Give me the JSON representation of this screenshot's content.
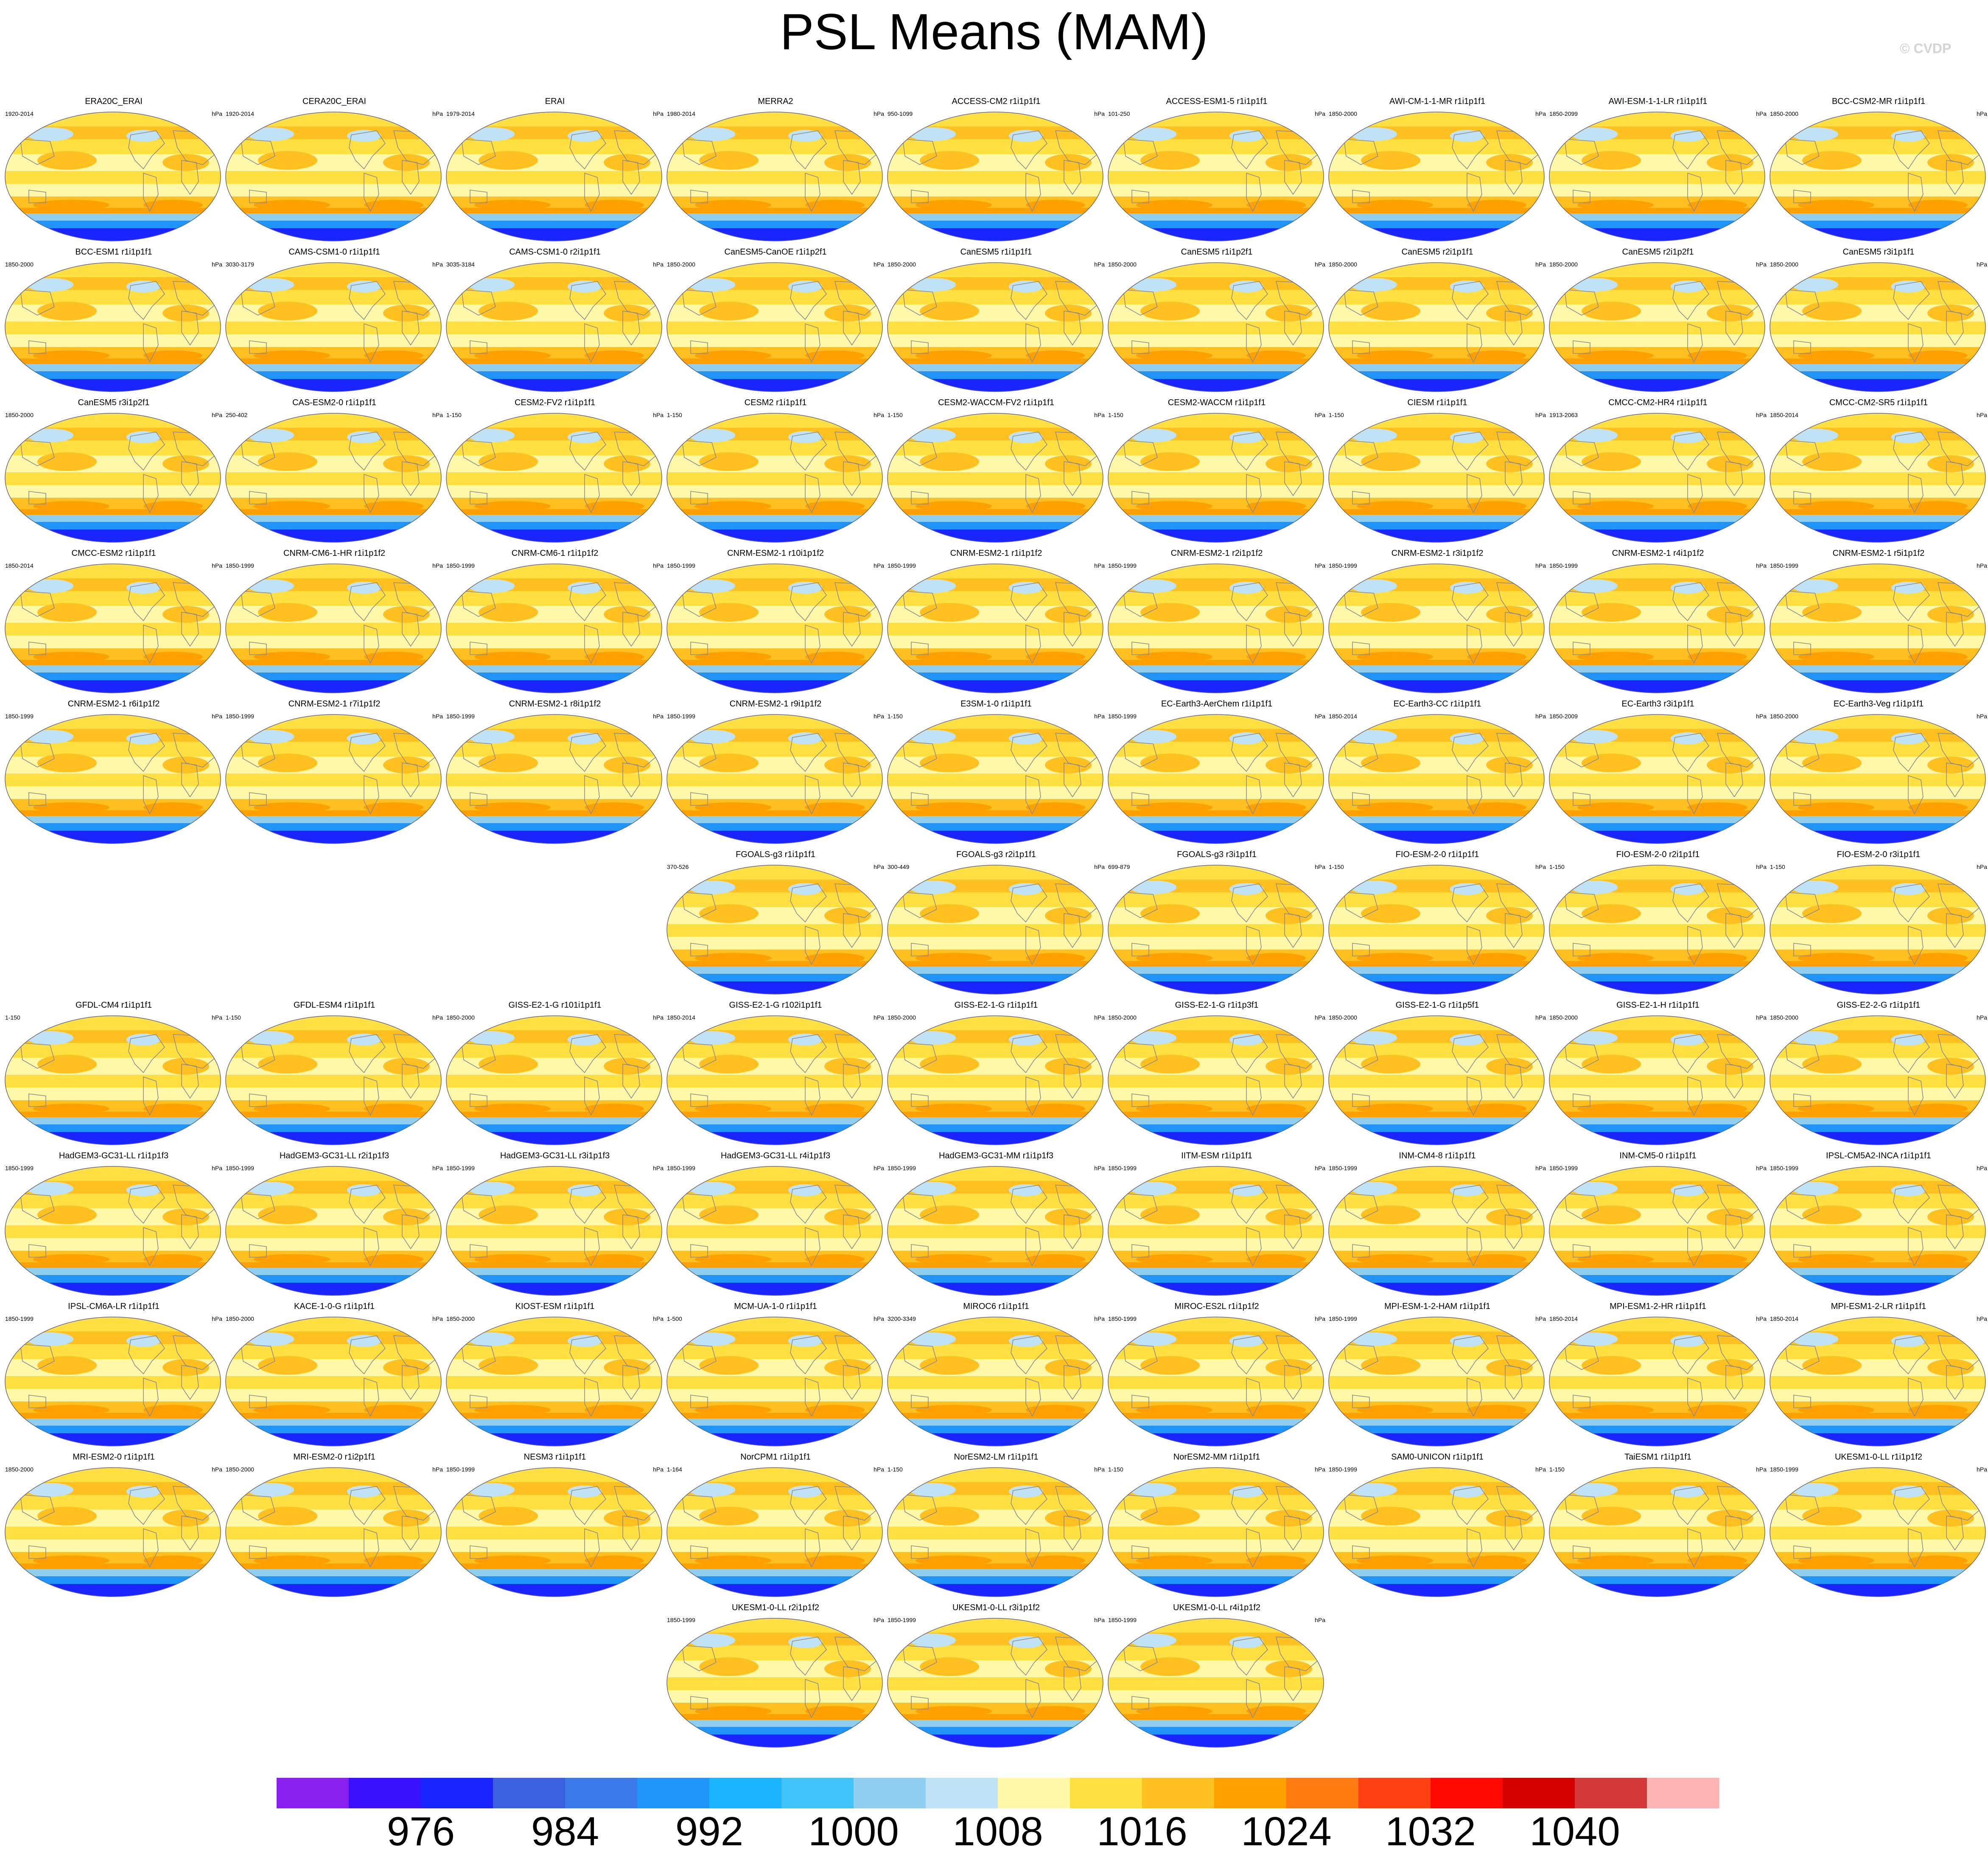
{
  "page": {
    "title": "PSL Means (MAM)",
    "watermark": "© CVDP"
  },
  "chart_data": {
    "type": "heatmap",
    "title": "PSL Means (MAM)",
    "description_kind": "panel grid of global sea level pressure maps",
    "units": "hPa",
    "colorbar": {
      "ticks": [
        976,
        984,
        992,
        1000,
        1008,
        1016,
        1024,
        1032,
        1040
      ],
      "colors": [
        "#8a20f0",
        "#3a10ff",
        "#1a24ff",
        "#3a60e0",
        "#3a7ae8",
        "#2094f8",
        "#1ab4ff",
        "#40c4f8",
        "#90cef0",
        "#c0e2f6",
        "#fff8a8",
        "#ffe040",
        "#ffc020",
        "#ffa000",
        "#ff7a10",
        "#ff4010",
        "#ff0800",
        "#d40000",
        "#d43838",
        "#ffb4b4"
      ]
    },
    "panels": [
      {
        "name": "ERA20C_ERAI",
        "years": "1920-2014",
        "unit": "hPa"
      },
      {
        "name": "CERA20C_ERAI",
        "years": "1920-2014",
        "unit": "hPa"
      },
      {
        "name": "ERAI",
        "years": "1979-2014",
        "unit": "hPa"
      },
      {
        "name": "MERRA2",
        "years": "1980-2014",
        "unit": "hPa"
      },
      {
        "name": "ACCESS-CM2 r1i1p1f1",
        "years": "950-1099",
        "unit": "hPa"
      },
      {
        "name": "ACCESS-ESM1-5 r1i1p1f1",
        "years": "101-250",
        "unit": "hPa"
      },
      {
        "name": "AWI-CM-1-1-MR r1i1p1f1",
        "years": "1850-2000",
        "unit": "hPa"
      },
      {
        "name": "AWI-ESM-1-1-LR r1i1p1f1",
        "years": "1850-2099",
        "unit": "hPa"
      },
      {
        "name": "BCC-CSM2-MR r1i1p1f1",
        "years": "1850-2000",
        "unit": "hPa"
      },
      {
        "name": "BCC-ESM1 r1i1p1f1",
        "years": "1850-2000",
        "unit": "hPa"
      },
      {
        "name": "CAMS-CSM1-0 r1i1p1f1",
        "years": "3030-3179",
        "unit": "hPa"
      },
      {
        "name": "CAMS-CSM1-0 r2i1p1f1",
        "years": "3035-3184",
        "unit": "hPa"
      },
      {
        "name": "CanESM5-CanOE r1i1p2f1",
        "years": "1850-2000",
        "unit": "hPa"
      },
      {
        "name": "CanESM5 r1i1p1f1",
        "years": "1850-2000",
        "unit": "hPa"
      },
      {
        "name": "CanESM5 r1i1p2f1",
        "years": "1850-2000",
        "unit": "hPa"
      },
      {
        "name": "CanESM5 r2i1p1f1",
        "years": "1850-2000",
        "unit": "hPa"
      },
      {
        "name": "CanESM5 r2i1p2f1",
        "years": "1850-2000",
        "unit": "hPa"
      },
      {
        "name": "CanESM5 r3i1p1f1",
        "years": "1850-2000",
        "unit": "hPa"
      },
      {
        "name": "CanESM5 r3i1p2f1",
        "years": "1850-2000",
        "unit": "hPa"
      },
      {
        "name": "CAS-ESM2-0 r1i1p1f1",
        "years": "250-402",
        "unit": "hPa"
      },
      {
        "name": "CESM2-FV2 r1i1p1f1",
        "years": "1-150",
        "unit": "hPa"
      },
      {
        "name": "CESM2 r1i1p1f1",
        "years": "1-150",
        "unit": "hPa"
      },
      {
        "name": "CESM2-WACCM-FV2 r1i1p1f1",
        "years": "1-150",
        "unit": "hPa"
      },
      {
        "name": "CESM2-WACCM r1i1p1f1",
        "years": "1-150",
        "unit": "hPa"
      },
      {
        "name": "CIESM r1i1p1f1",
        "years": "1-150",
        "unit": "hPa"
      },
      {
        "name": "CMCC-CM2-HR4 r1i1p1f1",
        "years": "1913-2063",
        "unit": "hPa"
      },
      {
        "name": "CMCC-CM2-SR5 r1i1p1f1",
        "years": "1850-2014",
        "unit": "hPa"
      },
      {
        "name": "CMCC-ESM2 r1i1p1f1",
        "years": "1850-2014",
        "unit": "hPa"
      },
      {
        "name": "CNRM-CM6-1-HR r1i1p1f2",
        "years": "1850-1999",
        "unit": "hPa"
      },
      {
        "name": "CNRM-CM6-1 r1i1p1f2",
        "years": "1850-1999",
        "unit": "hPa"
      },
      {
        "name": "CNRM-ESM2-1 r10i1p1f2",
        "years": "1850-1999",
        "unit": "hPa"
      },
      {
        "name": "CNRM-ESM2-1 r1i1p1f2",
        "years": "1850-1999",
        "unit": "hPa"
      },
      {
        "name": "CNRM-ESM2-1 r2i1p1f2",
        "years": "1850-1999",
        "unit": "hPa"
      },
      {
        "name": "CNRM-ESM2-1 r3i1p1f2",
        "years": "1850-1999",
        "unit": "hPa"
      },
      {
        "name": "CNRM-ESM2-1 r4i1p1f2",
        "years": "1850-1999",
        "unit": "hPa"
      },
      {
        "name": "CNRM-ESM2-1 r5i1p1f2",
        "years": "1850-1999",
        "unit": "hPa"
      },
      {
        "name": "CNRM-ESM2-1 r6i1p1f2",
        "years": "1850-1999",
        "unit": "hPa"
      },
      {
        "name": "CNRM-ESM2-1 r7i1p1f2",
        "years": "1850-1999",
        "unit": "hPa"
      },
      {
        "name": "CNRM-ESM2-1 r8i1p1f2",
        "years": "1850-1999",
        "unit": "hPa"
      },
      {
        "name": "CNRM-ESM2-1 r9i1p1f2",
        "years": "1850-1999",
        "unit": "hPa"
      },
      {
        "name": "E3SM-1-0 r1i1p1f1",
        "years": "1-150",
        "unit": "hPa"
      },
      {
        "name": "EC-Earth3-AerChem r1i1p1f1",
        "years": "1850-1999",
        "unit": "hPa"
      },
      {
        "name": "EC-Earth3-CC r1i1p1f1",
        "years": "1850-2014",
        "unit": "hPa"
      },
      {
        "name": "EC-Earth3 r3i1p1f1",
        "years": "1850-2009",
        "unit": "hPa"
      },
      {
        "name": "EC-Earth3-Veg r1i1p1f1",
        "years": "1850-2000",
        "unit": "hPa"
      },
      {
        "name": "FGOALS-g3 r1i1p1f1",
        "years": "370-526",
        "unit": "hPa"
      },
      {
        "name": "FGOALS-g3 r2i1p1f1",
        "years": "300-449",
        "unit": "hPa"
      },
      {
        "name": "FGOALS-g3 r3i1p1f1",
        "years": "699-879",
        "unit": "hPa"
      },
      {
        "name": "FIO-ESM-2-0 r1i1p1f1",
        "years": "1-150",
        "unit": "hPa"
      },
      {
        "name": "FIO-ESM-2-0 r2i1p1f1",
        "years": "1-150",
        "unit": "hPa"
      },
      {
        "name": "FIO-ESM-2-0 r3i1p1f1",
        "years": "1-150",
        "unit": "hPa"
      },
      {
        "name": "GFDL-CM4 r1i1p1f1",
        "years": "1-150",
        "unit": "hPa"
      },
      {
        "name": "GFDL-ESM4 r1i1p1f1",
        "years": "1-150",
        "unit": "hPa"
      },
      {
        "name": "GISS-E2-1-G r101i1p1f1",
        "years": "1850-2000",
        "unit": "hPa"
      },
      {
        "name": "GISS-E2-1-G r102i1p1f1",
        "years": "1850-2014",
        "unit": "hPa"
      },
      {
        "name": "GISS-E2-1-G r1i1p1f1",
        "years": "1850-2000",
        "unit": "hPa"
      },
      {
        "name": "GISS-E2-1-G r1i1p3f1",
        "years": "1850-2000",
        "unit": "hPa"
      },
      {
        "name": "GISS-E2-1-G r1i1p5f1",
        "years": "1850-2000",
        "unit": "hPa"
      },
      {
        "name": "GISS-E2-1-H r1i1p1f1",
        "years": "1850-2000",
        "unit": "hPa"
      },
      {
        "name": "GISS-E2-2-G r1i1p1f1",
        "years": "1850-2000",
        "unit": "hPa"
      },
      {
        "name": "HadGEM3-GC31-LL r1i1p1f3",
        "years": "1850-1999",
        "unit": "hPa"
      },
      {
        "name": "HadGEM3-GC31-LL r2i1p1f3",
        "years": "1850-1999",
        "unit": "hPa"
      },
      {
        "name": "HadGEM3-GC31-LL r3i1p1f3",
        "years": "1850-1999",
        "unit": "hPa"
      },
      {
        "name": "HadGEM3-GC31-LL r4i1p1f3",
        "years": "1850-1999",
        "unit": "hPa"
      },
      {
        "name": "HadGEM3-GC31-MM r1i1p1f3",
        "years": "1850-1999",
        "unit": "hPa"
      },
      {
        "name": "IITM-ESM r1i1p1f1",
        "years": "1850-1999",
        "unit": "hPa"
      },
      {
        "name": "INM-CM4-8 r1i1p1f1",
        "years": "1850-1999",
        "unit": "hPa"
      },
      {
        "name": "INM-CM5-0 r1i1p1f1",
        "years": "1850-1999",
        "unit": "hPa"
      },
      {
        "name": "IPSL-CM5A2-INCA r1i1p1f1",
        "years": "1850-1999",
        "unit": "hPa"
      },
      {
        "name": "IPSL-CM6A-LR r1i1p1f1",
        "years": "1850-1999",
        "unit": "hPa"
      },
      {
        "name": "KACE-1-0-G r1i1p1f1",
        "years": "1850-2000",
        "unit": "hPa"
      },
      {
        "name": "KIOST-ESM r1i1p1f1",
        "years": "1850-2000",
        "unit": "hPa"
      },
      {
        "name": "MCM-UA-1-0 r1i1p1f1",
        "years": "1-500",
        "unit": "hPa"
      },
      {
        "name": "MIROC6 r1i1p1f1",
        "years": "3200-3349",
        "unit": "hPa"
      },
      {
        "name": "MIROC-ES2L r1i1p1f2",
        "years": "1850-1999",
        "unit": "hPa"
      },
      {
        "name": "MPI-ESM-1-2-HAM r1i1p1f1",
        "years": "1850-1999",
        "unit": "hPa"
      },
      {
        "name": "MPI-ESM1-2-HR r1i1p1f1",
        "years": "1850-2014",
        "unit": "hPa"
      },
      {
        "name": "MPI-ESM1-2-LR r1i1p1f1",
        "years": "1850-2014",
        "unit": "hPa"
      },
      {
        "name": "MRI-ESM2-0 r1i1p1f1",
        "years": "1850-2000",
        "unit": "hPa"
      },
      {
        "name": "MRI-ESM2-0 r1i2p1f1",
        "years": "1850-2000",
        "unit": "hPa"
      },
      {
        "name": "NESM3 r1i1p1f1",
        "years": "1850-1999",
        "unit": "hPa"
      },
      {
        "name": "NorCPM1 r1i1p1f1",
        "years": "1-164",
        "unit": "hPa"
      },
      {
        "name": "NorESM2-LM r1i1p1f1",
        "years": "1-150",
        "unit": "hPa"
      },
      {
        "name": "NorESM2-MM r1i1p1f1",
        "years": "1-150",
        "unit": "hPa"
      },
      {
        "name": "SAM0-UNICON r1i1p1f1",
        "years": "1850-1999",
        "unit": "hPa"
      },
      {
        "name": "TaiESM1 r1i1p1f1",
        "years": "1-150",
        "unit": "hPa"
      },
      {
        "name": "UKESM1-0-LL r1i1p1f2",
        "years": "1850-1999",
        "unit": "hPa"
      },
      {
        "name": "UKESM1-0-LL r2i1p1f2",
        "years": "1850-1999",
        "unit": "hPa"
      },
      {
        "name": "UKESM1-0-LL r3i1p1f2",
        "years": "1850-1999",
        "unit": "hPa"
      },
      {
        "name": "UKESM1-0-LL r4i1p1f2",
        "years": "1850-1999",
        "unit": "hPa"
      }
    ]
  }
}
